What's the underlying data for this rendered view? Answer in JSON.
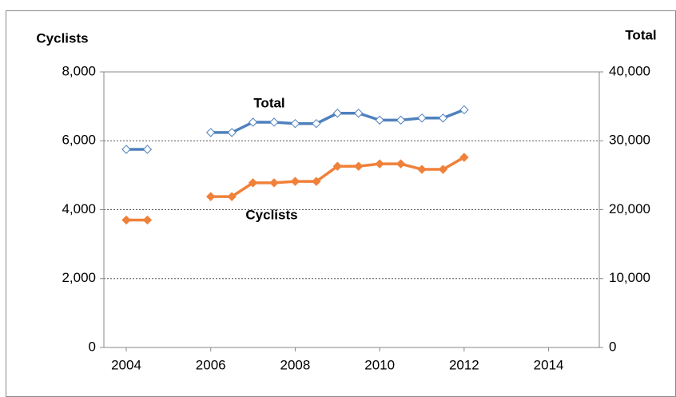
{
  "chart_data": {
    "type": "line",
    "y_axis_label": "Cyclists",
    "y2_axis_label": "Total",
    "annotations": [
      "Total",
      "Cyclists"
    ],
    "x": [
      2004,
      2004.5,
      2005,
      2006,
      2006.5,
      2007,
      2007.5,
      2008,
      2008.5,
      2009,
      2009.5,
      2010,
      2010.5,
      2011,
      2011.5,
      2012
    ],
    "series": [
      {
        "name": "Total",
        "color": "#4f81bd",
        "axis": "y2",
        "values": [
          28750,
          28750,
          null,
          31200,
          31200,
          32700,
          32700,
          32500,
          32500,
          34000,
          34000,
          33000,
          33000,
          33300,
          33300,
          34500
        ]
      },
      {
        "name": "Cyclists",
        "color": "#f0813a",
        "axis": "y",
        "values": [
          3700,
          3700,
          null,
          4380,
          4380,
          4780,
          4780,
          4820,
          4820,
          5260,
          5260,
          5330,
          5330,
          5170,
          5170,
          5520
        ]
      }
    ],
    "xlim": [
      2003.47,
      2015.2
    ],
    "xticks": [
      2004,
      2006,
      2008,
      2010,
      2012,
      2014
    ],
    "ylim": [
      0,
      8000
    ],
    "yticks": [
      0,
      {
        "value": 2000,
        "label": "2,000"
      },
      {
        "value": 4000,
        "label": "4,000"
      },
      {
        "value": 6000,
        "label": "6,000"
      },
      {
        "value": 8000,
        "label": "8,000"
      }
    ],
    "y2lim": [
      0,
      40000
    ],
    "y2ticks": [
      0,
      {
        "value": 10000,
        "label": "10,000"
      },
      {
        "value": 20000,
        "label": "20,000"
      },
      {
        "value": 30000,
        "label": "30,000"
      },
      {
        "value": 40000,
        "label": "40,000"
      }
    ],
    "grid": true
  }
}
